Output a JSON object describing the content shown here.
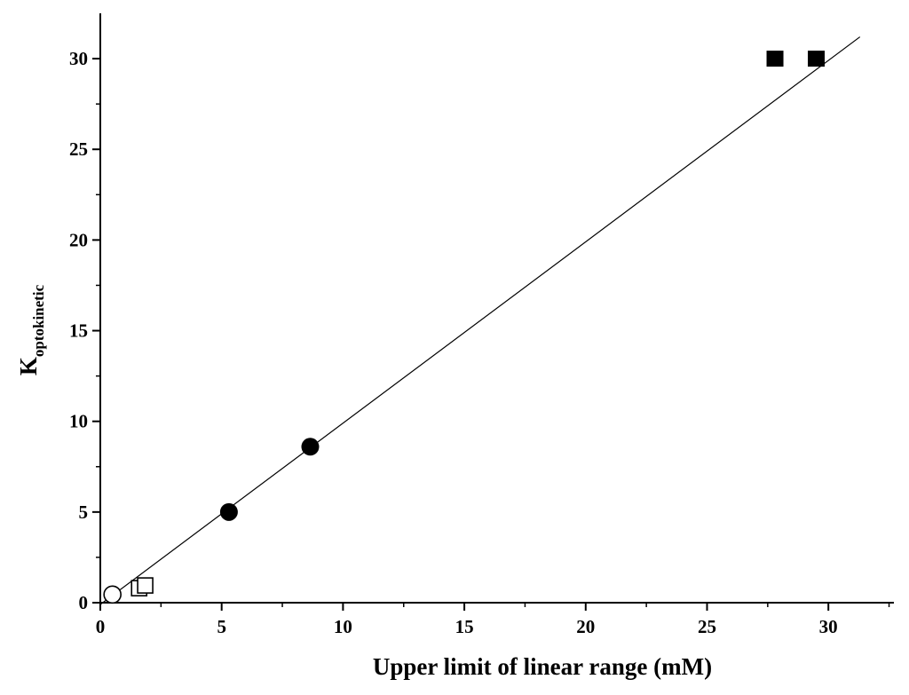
{
  "chart_data": {
    "type": "scatter",
    "title": "",
    "xlabel": "Upper limit of linear range (mM)",
    "ylabel_main": "K",
    "ylabel_sub": "optokinetic",
    "xlim": [
      0,
      32.7
    ],
    "ylim": [
      0,
      32.5
    ],
    "x_ticks": [
      0,
      5,
      10,
      15,
      20,
      25,
      30
    ],
    "y_ticks": [
      0,
      5,
      10,
      15,
      20,
      25,
      30
    ],
    "grid": false,
    "legend": "none",
    "series": [
      {
        "marker": "open-circle",
        "points": [
          [
            0.5,
            0.45
          ]
        ]
      },
      {
        "marker": "open-square",
        "points": [
          [
            1.6,
            0.8
          ],
          [
            1.85,
            0.95
          ]
        ]
      },
      {
        "marker": "filled-circle",
        "points": [
          [
            5.3,
            5.0
          ],
          [
            8.65,
            8.6
          ]
        ]
      },
      {
        "marker": "filled-square",
        "points": [
          [
            27.8,
            30.0
          ],
          [
            29.5,
            30.0
          ]
        ]
      }
    ],
    "fit_line": {
      "slope": 1.0,
      "intercept": -0.1,
      "x_range": [
        0,
        31.3
      ]
    }
  }
}
